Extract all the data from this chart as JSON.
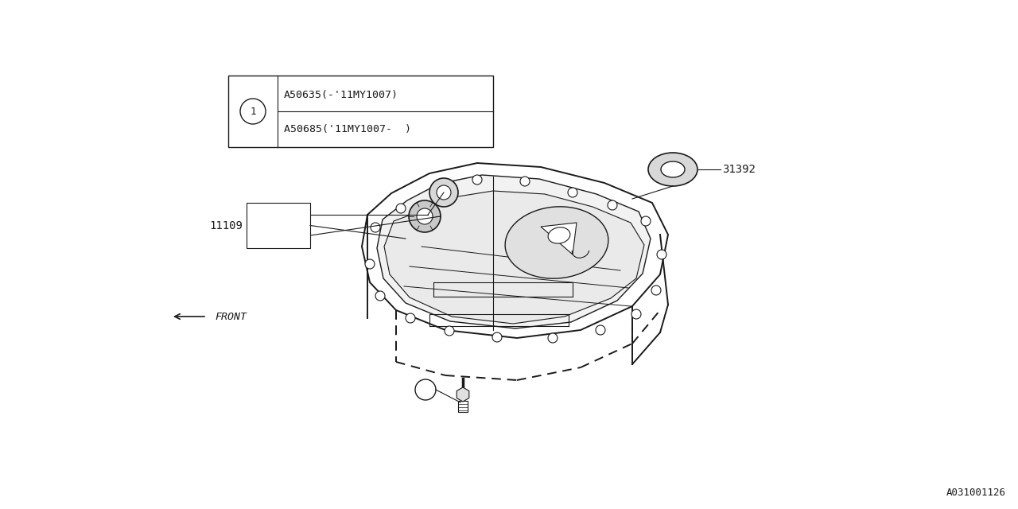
{
  "bg_color": "#ffffff",
  "line_color": "#1a1a1a",
  "title_bottom_right": "A031001126",
  "legend_line1": "A50635(-'11MY1007)",
  "legend_line2": "A50685('11MY1007-  )",
  "font_family": "monospace",
  "font_size_label": 10,
  "font_size_small": 9,
  "pan_color": "#ffffff",
  "pan_inner_color": "#f0f0f0"
}
